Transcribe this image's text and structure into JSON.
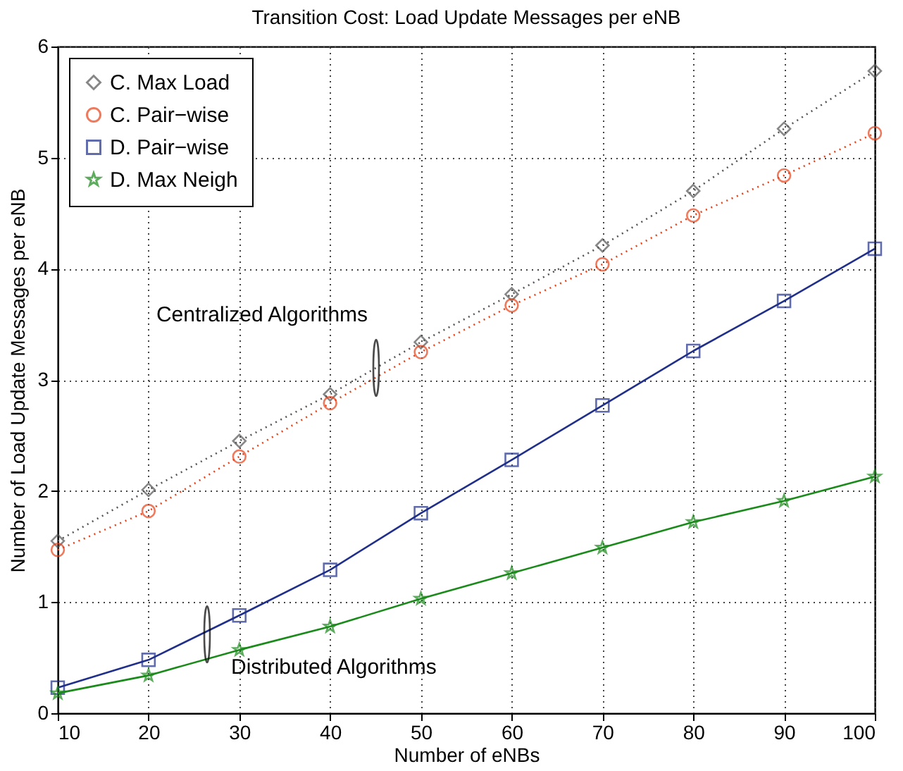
{
  "chart_data": {
    "type": "line",
    "title": "Transition Cost: Load Update Messages per eNB",
    "xlabel": "Number of eNBs",
    "ylabel": "Number of Load Update Messages per eNB",
    "x": [
      10,
      20,
      30,
      40,
      50,
      60,
      70,
      80,
      90,
      100
    ],
    "xlim": [
      10,
      100
    ],
    "xticks": [
      10,
      20,
      30,
      40,
      50,
      60,
      70,
      80,
      90,
      100
    ],
    "ylim": [
      0,
      6
    ],
    "yticks": [
      0,
      1,
      2,
      3,
      4,
      5,
      6
    ],
    "grid": true,
    "legend": "top left",
    "series": [
      {
        "name": "C. Max Load",
        "color": "#555555",
        "marker": "diamond",
        "line_style": "dotted",
        "values": [
          1.55,
          2.01,
          2.45,
          2.87,
          3.34,
          3.77,
          4.21,
          4.7,
          5.26,
          5.78
        ]
      },
      {
        "name": "C. Pair−wise",
        "color": "#e8431a",
        "marker": "circle",
        "line_style": "dotted",
        "values": [
          1.47,
          1.82,
          2.31,
          2.79,
          3.25,
          3.67,
          4.04,
          4.48,
          4.84,
          5.22
        ]
      },
      {
        "name": "D. Pair−wise",
        "color": "#1f2f8a",
        "marker": "square",
        "line_style": "solid",
        "values": [
          0.23,
          0.48,
          0.88,
          1.29,
          1.8,
          2.28,
          2.77,
          3.26,
          3.71,
          4.18
        ]
      },
      {
        "name": "D. Max Neigh",
        "color": "#1a8a1a",
        "marker": "star",
        "line_style": "solid",
        "values": [
          0.18,
          0.34,
          0.57,
          0.78,
          1.03,
          1.26,
          1.49,
          1.72,
          1.91,
          2.13
        ]
      }
    ],
    "annotations": [
      "Centralized Algorithms",
      "Distributed Algorithms"
    ]
  }
}
